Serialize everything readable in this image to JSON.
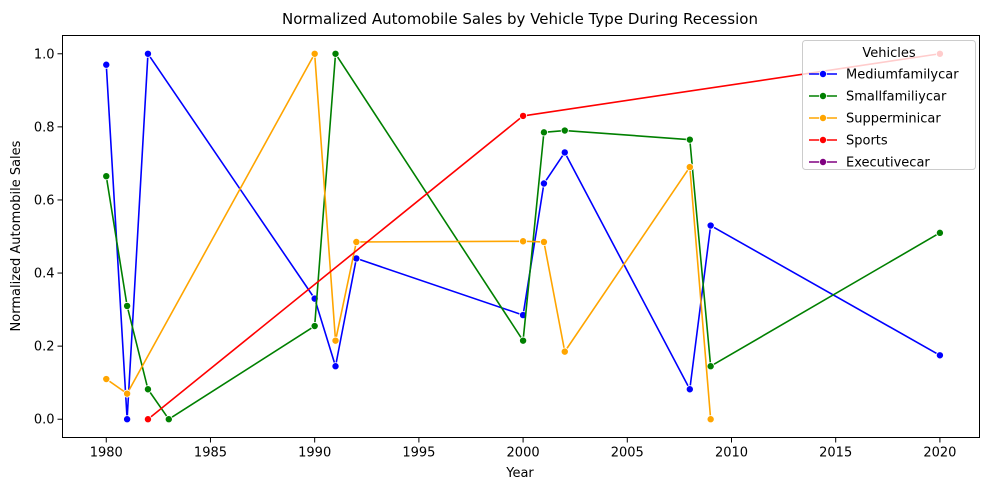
{
  "chart_data": {
    "type": "line",
    "title": "Normalized Automobile Sales by Vehicle Type During Recession",
    "xlabel": "Year",
    "ylabel": "Normalized Automobile Sales",
    "xlim": [
      1977.9,
      2021.9
    ],
    "ylim": [
      -0.05,
      1.05
    ],
    "xticks": [
      "1980",
      "1985",
      "1990",
      "1995",
      "2000",
      "2005",
      "2010",
      "2015",
      "2020"
    ],
    "yticks": [
      "0.0",
      "0.2",
      "0.4",
      "0.6",
      "0.8",
      "1.0"
    ],
    "grid": false,
    "legend": {
      "title": "Vehicles",
      "placement": "top-right"
    },
    "series": [
      {
        "name": "Mediumfamilycar",
        "color": "#0000ff",
        "points": [
          [
            1980,
            0.97
          ],
          [
            1981,
            0.0
          ],
          [
            1982,
            1.0
          ],
          [
            1990,
            0.33
          ],
          [
            1991,
            0.145
          ],
          [
            1992,
            0.44
          ],
          [
            2000,
            0.285
          ],
          [
            2001,
            0.645
          ],
          [
            2002,
            0.73
          ],
          [
            2008,
            0.082
          ],
          [
            2009,
            0.53
          ],
          [
            2020,
            0.175
          ]
        ]
      },
      {
        "name": "Smallfamiliycar",
        "color": "#008000",
        "points": [
          [
            1980,
            0.665
          ],
          [
            1981,
            0.31
          ],
          [
            1982,
            0.082
          ],
          [
            1983,
            0.0
          ],
          [
            1990,
            0.255
          ],
          [
            1991,
            1.0
          ],
          [
            2000,
            0.215
          ],
          [
            2001,
            0.785
          ],
          [
            2002,
            0.79
          ],
          [
            2008,
            0.765
          ],
          [
            2009,
            0.145
          ],
          [
            2020,
            0.51
          ]
        ]
      },
      {
        "name": "Supperminicar",
        "color": "#ffa500",
        "points": [
          [
            1980,
            0.11
          ],
          [
            1981,
            0.07
          ],
          [
            1990,
            1.0
          ],
          [
            1991,
            0.215
          ],
          [
            1992,
            0.485
          ],
          [
            2000,
            0.487
          ],
          [
            2001,
            0.485
          ],
          [
            2002,
            0.185
          ],
          [
            2008,
            0.69
          ],
          [
            2009,
            0.0
          ]
        ]
      },
      {
        "name": "Sports",
        "color": "#ff0000",
        "points": [
          [
            1982,
            0.0
          ],
          [
            2000,
            0.83
          ],
          [
            2020,
            1.0
          ]
        ]
      },
      {
        "name": "Executivecar",
        "color": "#800080",
        "points": []
      }
    ]
  }
}
